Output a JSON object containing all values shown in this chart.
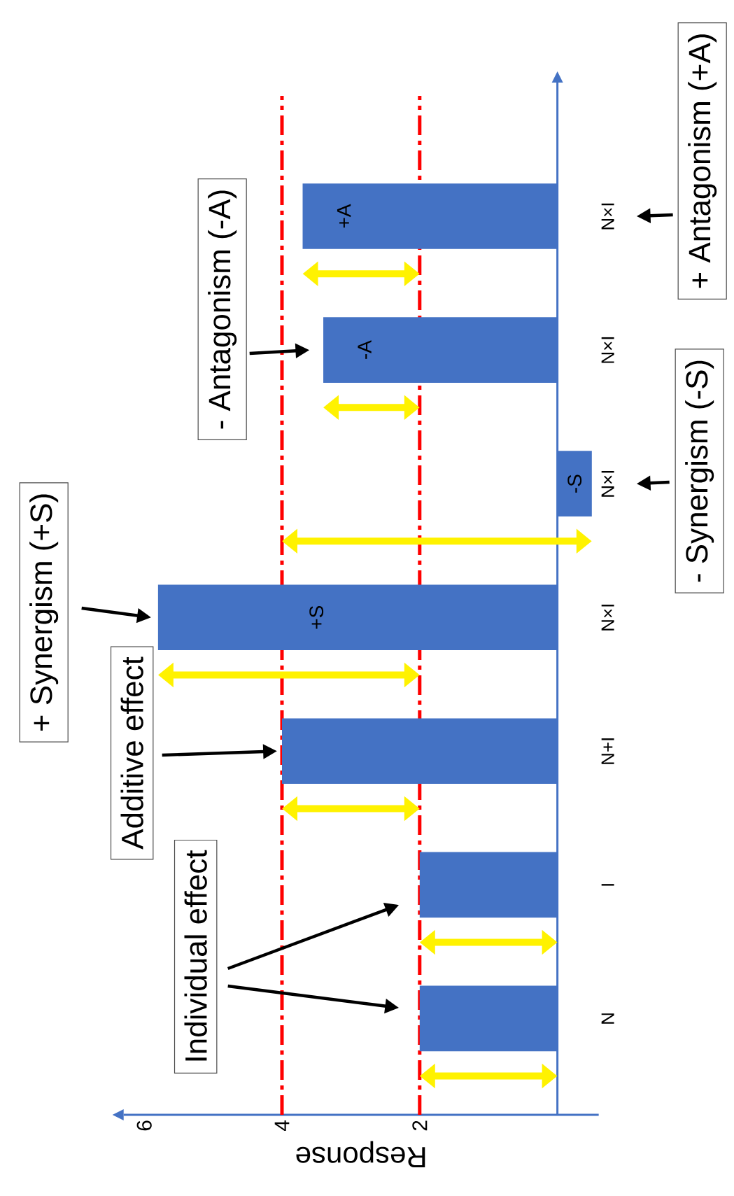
{
  "chart_data": {
    "type": "bar",
    "orientation": "horizontal",
    "categories": [
      "N×I",
      "N×I",
      "N×I",
      "N×I",
      "N+I",
      "I",
      "N"
    ],
    "values": [
      3.7,
      3.4,
      -0.5,
      5.8,
      4,
      2,
      2
    ],
    "color": "#4472c4",
    "xlim": [
      6.3,
      -0.6
    ],
    "xticks": [
      2,
      4,
      6
    ],
    "xlabel": "Response",
    "ref_lines": [
      {
        "axis": "x",
        "value": 2,
        "color": "#ff0000",
        "line_style": "dashdot"
      },
      {
        "axis": "x",
        "value": 4,
        "color": "#ff0000",
        "line_style": "dashdot"
      }
    ],
    "annotations": [
      "Individual effect",
      "Additive effect",
      "+ Synergism (+S)",
      "- Synergism (-S)",
      "- Antagonism (-A)",
      "+ Antagonism (+A)",
      "+S",
      "-S",
      "-A",
      "+A"
    ]
  }
}
